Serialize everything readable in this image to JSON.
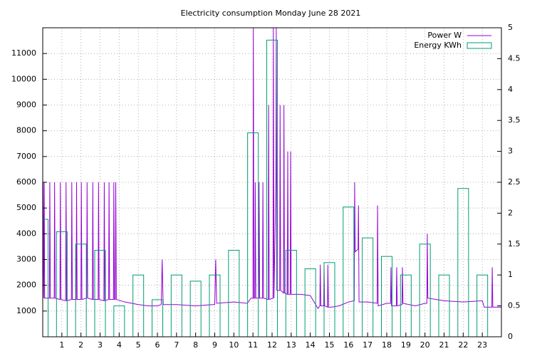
{
  "chart_data": {
    "type": "line",
    "title": "Electricity consumption Monday June 28 2021",
    "xlim": [
      0,
      24
    ],
    "xticks": [
      1,
      2,
      3,
      4,
      5,
      6,
      7,
      8,
      9,
      10,
      11,
      12,
      13,
      14,
      15,
      16,
      17,
      18,
      19,
      20,
      21,
      22,
      23
    ],
    "ylim": [
      0,
      12000
    ],
    "yticks": [
      1000,
      2000,
      3000,
      4000,
      5000,
      6000,
      7000,
      8000,
      9000,
      10000,
      11000
    ],
    "y2lim": [
      0,
      5
    ],
    "y2ticks": [
      0,
      0.5,
      1,
      1.5,
      2,
      2.5,
      3,
      3.5,
      4,
      4.5,
      5
    ],
    "grid": true,
    "legend": "top-right",
    "series": [
      {
        "name": "Power W",
        "type": "line",
        "color": "#9400d3",
        "x": [
          0,
          0.02,
          0.05,
          0.08,
          0.1,
          0.15,
          0.35,
          0.37,
          0.4,
          0.6,
          0.62,
          0.65,
          0.9,
          0.92,
          0.95,
          1.2,
          1.22,
          1.25,
          1.5,
          1.52,
          1.55,
          1.75,
          1.77,
          1.8,
          2.0,
          2.02,
          2.05,
          2.3,
          2.32,
          2.35,
          2.6,
          2.62,
          2.65,
          2.9,
          2.92,
          2.95,
          3.2,
          3.22,
          3.25,
          3.45,
          3.47,
          3.5,
          3.7,
          3.72,
          3.75,
          3.8,
          3.82,
          3.85,
          4.3,
          5.0,
          5.5,
          6.0,
          6.2,
          6.25,
          6.3,
          7.0,
          8.0,
          8.9,
          9.0,
          9.05,
          9.1,
          10.0,
          10.7,
          10.9,
          11.0,
          11.02,
          11.05,
          11.1,
          11.12,
          11.15,
          11.3,
          11.32,
          11.35,
          11.5,
          11.52,
          11.55,
          11.8,
          11.82,
          11.85,
          12.05,
          12.07,
          12.1,
          12.2,
          12.22,
          12.25,
          12.4,
          12.42,
          12.45,
          12.6,
          12.62,
          12.65,
          12.8,
          12.82,
          12.85,
          12.95,
          12.97,
          13.0,
          13.5,
          14.0,
          14.4,
          14.5,
          14.52,
          14.55,
          14.7,
          14.72,
          14.75,
          14.9,
          14.92,
          14.95,
          15.1,
          15.5,
          16.0,
          16.3,
          16.32,
          16.35,
          16.5,
          16.52,
          16.55,
          17.0,
          17.5,
          17.52,
          17.55,
          18.0,
          18.2,
          18.22,
          18.25,
          18.5,
          18.52,
          18.55,
          18.8,
          18.82,
          18.85,
          19.5,
          20.0,
          20.1,
          20.12,
          20.15,
          21.0,
          22.0,
          23.0,
          23.1,
          23.5,
          23.52,
          23.55,
          24.0
        ],
        "values": [
          1500,
          6000,
          1500,
          6000,
          1500,
          1500,
          1500,
          6000,
          1500,
          1500,
          6000,
          1500,
          1450,
          6000,
          1450,
          1400,
          6000,
          1400,
          1450,
          6000,
          1450,
          1450,
          6000,
          1450,
          1450,
          6000,
          1450,
          1500,
          6000,
          1500,
          1450,
          6000,
          1450,
          1450,
          6000,
          1450,
          1400,
          6000,
          1400,
          1450,
          6000,
          1450,
          1450,
          6000,
          1450,
          1450,
          6000,
          1450,
          1350,
          1250,
          1200,
          1200,
          1250,
          3000,
          1250,
          1250,
          1200,
          1250,
          1250,
          3000,
          1300,
          1350,
          1300,
          1500,
          1500,
          12000,
          1500,
          1500,
          6000,
          1500,
          1500,
          6000,
          1500,
          1500,
          6000,
          1500,
          1450,
          9000,
          1450,
          1500,
          12000,
          1500,
          6000,
          12000,
          1800,
          1800,
          9000,
          1800,
          1700,
          9000,
          1700,
          1650,
          7200,
          1650,
          1650,
          7200,
          1650,
          1650,
          1600,
          1100,
          1200,
          2800,
          1200,
          1200,
          2800,
          1200,
          1150,
          2800,
          1150,
          1150,
          1200,
          1350,
          1400,
          6000,
          3300,
          3400,
          5100,
          1350,
          1350,
          1300,
          5100,
          1200,
          1300,
          1300,
          2700,
          1200,
          1200,
          2700,
          1200,
          1250,
          2700,
          1300,
          1200,
          1300,
          1300,
          4000,
          1500,
          1400,
          1350,
          1400,
          1150,
          1150,
          2700,
          1150,
          1150
        ]
      },
      {
        "name": "Energy KWh",
        "type": "boxes",
        "axis": "y2",
        "color": "#009e73",
        "x": [
          0,
          1,
          2,
          3,
          4,
          5,
          6,
          7,
          8,
          9,
          10,
          11,
          12,
          13,
          14,
          15,
          16,
          17,
          18,
          19,
          20,
          21,
          22,
          23
        ],
        "values": [
          1.9,
          1.7,
          1.5,
          1.4,
          0.5,
          1.0,
          0.6,
          1.0,
          0.9,
          1.0,
          1.4,
          3.3,
          4.8,
          1.4,
          1.1,
          1.2,
          2.1,
          1.6,
          1.3,
          1.0,
          1.5,
          1.0,
          2.4,
          1.0
        ]
      }
    ]
  }
}
